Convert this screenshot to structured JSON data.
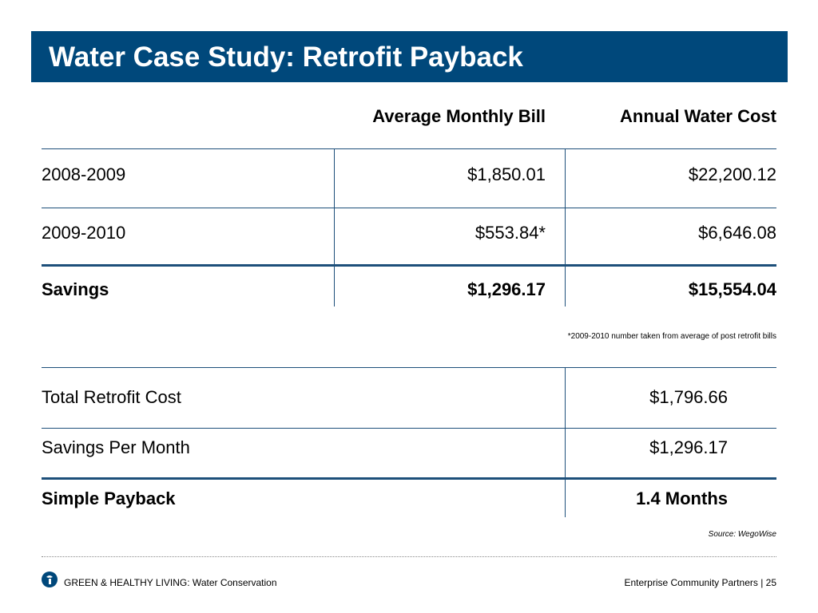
{
  "title": "Water Case Study: Retrofit Payback",
  "colors": {
    "title_bg": "#00487b",
    "rule": "#1d4f7a",
    "text": "#000000"
  },
  "table1": {
    "headers": [
      "Average Monthly Bill",
      "Annual Water Cost"
    ],
    "rows": [
      {
        "label": "2008-2009",
        "monthly": "$1,850.01",
        "annual": "$22,200.12"
      },
      {
        "label": "2009-2010",
        "monthly": "$553.84*",
        "annual": "$6,646.08"
      },
      {
        "label": "Savings",
        "monthly": "$1,296.17",
        "annual": "$15,554.04"
      }
    ],
    "footnote": "*2009-2010 number taken from average of post retrofit bills"
  },
  "table2": {
    "rows": [
      {
        "label": "Total Retrofit  Cost",
        "value": "$1,796.66"
      },
      {
        "label": "Savings Per Month",
        "value": "$1,296.17"
      },
      {
        "label": "Simple Payback",
        "value": "1.4 Months"
      }
    ],
    "source": "Source: WegoWise"
  },
  "footer": {
    "left": "GREEN & HEALTHY LIVING: Water Conservation",
    "right": "Enterprise Community Partners | 25",
    "logo_icon": "enterprise-logo-icon"
  }
}
